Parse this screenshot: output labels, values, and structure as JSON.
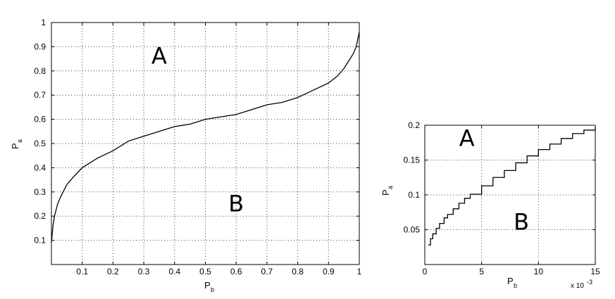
{
  "chart_data": [
    {
      "type": "line",
      "xlabel": "P",
      "xlabel_sub": "b",
      "ylabel": "P",
      "ylabel_sub": "a",
      "xlim": [
        0,
        1
      ],
      "ylim": [
        0,
        1
      ],
      "xticks": [
        0.1,
        0.2,
        0.3,
        0.4,
        0.5,
        0.6,
        0.7,
        0.8,
        0.9,
        1
      ],
      "xtick_labels": [
        "0.1",
        "0.2",
        "0.3",
        "0.4",
        "0.5",
        "0.6",
        "0.7",
        "0.8",
        "0.9",
        "1"
      ],
      "yticks": [
        0.1,
        0.2,
        0.3,
        0.4,
        0.5,
        0.6,
        0.7,
        0.8,
        0.9,
        1
      ],
      "ytick_labels": [
        "0.1",
        "0.2",
        "0.3",
        "0.4",
        "0.5",
        "0.6",
        "0.7",
        "0.8",
        "0.9",
        "1"
      ],
      "grid": true,
      "series": [
        {
          "x": [
            0.0,
            0.005,
            0.01,
            0.02,
            0.03,
            0.05,
            0.07,
            0.1,
            0.15,
            0.2,
            0.25,
            0.3,
            0.35,
            0.4,
            0.45,
            0.5,
            0.55,
            0.6,
            0.65,
            0.7,
            0.75,
            0.8,
            0.85,
            0.9,
            0.93,
            0.95,
            0.97,
            0.98,
            0.99,
            0.995,
            1.0
          ],
          "y": [
            0.09,
            0.16,
            0.2,
            0.25,
            0.28,
            0.33,
            0.36,
            0.4,
            0.44,
            0.47,
            0.51,
            0.53,
            0.55,
            0.57,
            0.58,
            0.6,
            0.61,
            0.62,
            0.64,
            0.66,
            0.67,
            0.69,
            0.72,
            0.75,
            0.78,
            0.81,
            0.85,
            0.87,
            0.9,
            0.93,
            0.96
          ]
        }
      ],
      "annotations": [
        {
          "text": "A",
          "x": 0.35,
          "y": 0.83
        },
        {
          "text": "B",
          "x": 0.6,
          "y": 0.22
        }
      ]
    },
    {
      "type": "line",
      "xlabel": "P",
      "xlabel_sub": "b",
      "ylabel": "P",
      "ylabel_sub": "a",
      "x_multiplier": "x 10",
      "x_multiplier_exp": "-3",
      "xlim": [
        0,
        15
      ],
      "ylim": [
        0,
        0.2
      ],
      "xticks": [
        0,
        5,
        10,
        15
      ],
      "xtick_labels": [
        "0",
        "5",
        "10",
        "15"
      ],
      "yticks": [
        0.05,
        0.1,
        0.15,
        0.2
      ],
      "ytick_labels": [
        "0.05",
        "0.1",
        "0.15",
        "0.2"
      ],
      "grid": true,
      "series": [
        {
          "x": [
            0.3,
            0.5,
            0.7,
            1.0,
            1.3,
            1.7,
            2.0,
            2.5,
            3.0,
            3.5,
            4.0,
            5.0,
            6.0,
            7.0,
            8.0,
            9.0,
            10.0,
            11.0,
            12.0,
            13.0,
            14.0,
            15.0
          ],
          "y": [
            0.028,
            0.037,
            0.044,
            0.052,
            0.059,
            0.067,
            0.072,
            0.08,
            0.088,
            0.095,
            0.101,
            0.113,
            0.125,
            0.135,
            0.146,
            0.156,
            0.165,
            0.173,
            0.181,
            0.188,
            0.193,
            0.198
          ]
        }
      ],
      "annotations": [
        {
          "text": "A",
          "x": 3.7,
          "y": 0.17
        },
        {
          "text": "B",
          "x": 8.5,
          "y": 0.05
        }
      ]
    }
  ]
}
